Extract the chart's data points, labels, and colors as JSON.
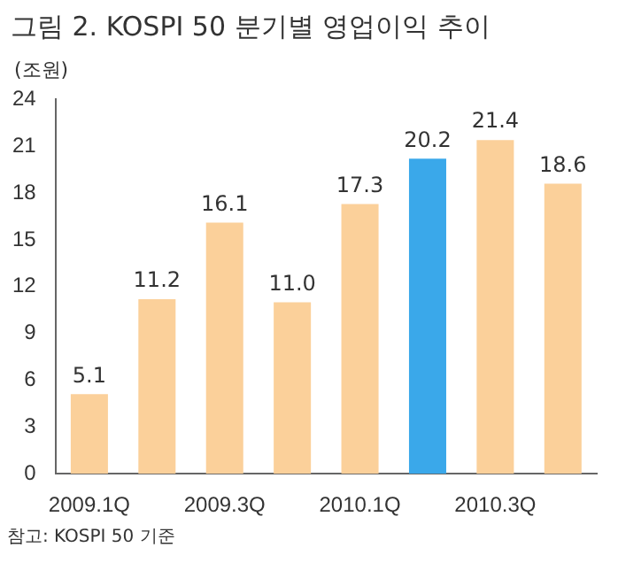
{
  "chart_data": {
    "type": "bar",
    "title": "그림 2. KOSPI 50 분기별 영업이익 추이",
    "ylabel": "(조원)",
    "categories": [
      "2009.1Q",
      null,
      "2009.3Q",
      null,
      "2010.1Q",
      null,
      "2010.3Q",
      null
    ],
    "values": [
      5.1,
      11.2,
      16.1,
      11.0,
      17.3,
      20.2,
      21.4,
      18.6
    ],
    "colors": [
      "#fbd09a",
      "#fbd09a",
      "#fbd09a",
      "#fbd09a",
      "#fbd09a",
      "#3aa8ea",
      "#fbd09a",
      "#fbd09a"
    ],
    "ylim": [
      0,
      24
    ],
    "yticks": [
      0,
      3,
      6,
      9,
      12,
      15,
      18,
      21,
      24
    ],
    "value_labels": [
      "5.1",
      "11.2",
      "16.1",
      "11.0",
      "17.3",
      "20.2",
      "21.4",
      "18.6"
    ],
    "grid": false,
    "legend": false,
    "annotations": [
      "참고: KOSPI 50 기준"
    ]
  }
}
